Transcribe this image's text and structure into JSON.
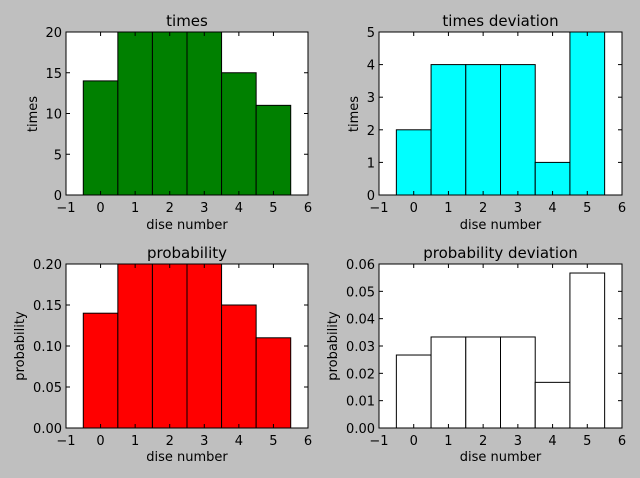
{
  "figure": {
    "background": "#bfbfbf"
  },
  "chart_data": [
    {
      "type": "bar",
      "title": "times",
      "xlabel": "dise number",
      "ylabel": "times",
      "categories": [
        0,
        1,
        2,
        3,
        4,
        5
      ],
      "values": [
        14,
        20,
        20,
        20,
        15,
        11
      ],
      "xlim": [
        -1,
        6
      ],
      "ylim": [
        0,
        20
      ],
      "xticks": [
        "−1",
        "0",
        "1",
        "2",
        "3",
        "4",
        "5",
        "6"
      ],
      "yticks": [
        "0",
        "5",
        "10",
        "15",
        "20"
      ],
      "bar_color": "#008000",
      "grid": false
    },
    {
      "type": "bar",
      "title": "times deviation",
      "xlabel": "dise number",
      "ylabel": "times",
      "categories": [
        0,
        1,
        2,
        3,
        4,
        5
      ],
      "values": [
        2,
        4,
        4,
        4,
        1,
        5
      ],
      "xlim": [
        -1,
        6
      ],
      "ylim": [
        0,
        5
      ],
      "xticks": [
        "−1",
        "0",
        "1",
        "2",
        "3",
        "4",
        "5",
        "6"
      ],
      "yticks": [
        "0",
        "1",
        "2",
        "3",
        "4",
        "5"
      ],
      "bar_color": "#00ffff",
      "grid": false
    },
    {
      "type": "bar",
      "title": "probability",
      "xlabel": "dise number",
      "ylabel": "probability",
      "categories": [
        0,
        1,
        2,
        3,
        4,
        5
      ],
      "values": [
        0.14,
        0.2,
        0.2,
        0.2,
        0.15,
        0.11
      ],
      "xlim": [
        -1,
        6
      ],
      "ylim": [
        0,
        0.2
      ],
      "xticks": [
        "−1",
        "0",
        "1",
        "2",
        "3",
        "4",
        "5",
        "6"
      ],
      "yticks": [
        "0.00",
        "0.05",
        "0.10",
        "0.15",
        "0.20"
      ],
      "bar_color": "#ff0000",
      "grid": false
    },
    {
      "type": "bar",
      "title": "probability deviation",
      "xlabel": "dise number",
      "ylabel": "probability",
      "categories": [
        0,
        1,
        2,
        3,
        4,
        5
      ],
      "values": [
        0.0267,
        0.0333,
        0.0333,
        0.0333,
        0.0167,
        0.0567
      ],
      "xlim": [
        -1,
        6
      ],
      "ylim": [
        0,
        0.06
      ],
      "xticks": [
        "−1",
        "0",
        "1",
        "2",
        "3",
        "4",
        "5",
        "6"
      ],
      "yticks": [
        "0.00",
        "0.01",
        "0.02",
        "0.03",
        "0.04",
        "0.05",
        "0.06"
      ],
      "bar_color": "#ffffff",
      "grid": false
    }
  ]
}
